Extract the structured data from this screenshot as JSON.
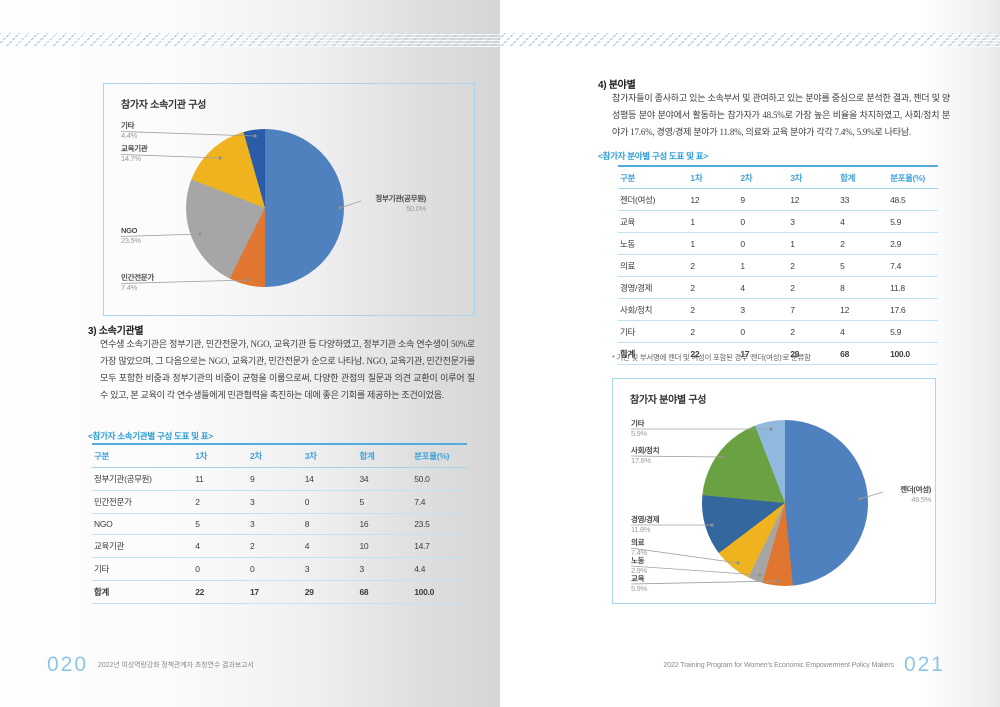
{
  "left_page": {
    "section_heading": "3) 소속기관별",
    "section_body": "연수생 소속기관은 정부기관, 민간전문가, NGO, 교육기관 등 다양하였고, 정부기관 소속 연수생이 50%로 가장 많았으며, 그 다음으로는 NGO, 교육기관, 민간전문가 순으로 나타남. NGO, 교육기관, 민간전문가를 모두 포함한 비중과 정부기관의 비중이 균형을 이룸으로써, 다양한 관점의 질문과 의견 교환이 이루어 질 수 있고, 본 교육이 각 연수생들에게 민관협력을 촉진하는 데에 좋은 기회를 제공하는 조건이었음.",
    "table_caption": "<참가자 소속기관별 구성 도표 및 표>",
    "table": {
      "headers": [
        "구분",
        "1차",
        "2차",
        "3차",
        "합계",
        "분포율(%)"
      ],
      "rows": [
        [
          "정부기관(공무원)",
          "11",
          "9",
          "14",
          "34",
          "50.0"
        ],
        [
          "민간전문가",
          "2",
          "3",
          "0",
          "5",
          "7.4"
        ],
        [
          "NGO",
          "5",
          "3",
          "8",
          "16",
          "23.5"
        ],
        [
          "교육기관",
          "4",
          "2",
          "4",
          "10",
          "14.7"
        ],
        [
          "기타",
          "0",
          "0",
          "3",
          "3",
          "4.4"
        ]
      ],
      "total": [
        "합계",
        "22",
        "17",
        "29",
        "68",
        "100.0"
      ]
    },
    "footer_page": "020",
    "footer_text": "2022년 여성역량강화 정책관계자 초청연수 결과보고서"
  },
  "right_page": {
    "section_heading": "4) 분야별",
    "section_body": "참가자들이 종사하고 있는 소속부서 및 관여하고 있는 분야를 중심으로 분석한 결과, 젠더 및 양성평등 분야 분야에서 활동하는 참가자가 48.5%로 가장 높은 비율을 차지하였고, 사회/정치 분야가 17.6%, 경영/경제 분야가 11.8%, 의료와 교육 분야가 각각 7.4%, 5.9%로 나타남.",
    "table_caption": "<참가자 분야별 구성 도표 및 표>",
    "table": {
      "headers": [
        "구분",
        "1차",
        "2차",
        "3차",
        "합계",
        "분포율(%)"
      ],
      "rows": [
        [
          "젠더(여성)",
          "12",
          "9",
          "12",
          "33",
          "48.5"
        ],
        [
          "교육",
          "1",
          "0",
          "3",
          "4",
          "5.9"
        ],
        [
          "노동",
          "1",
          "0",
          "1",
          "2",
          "2.9"
        ],
        [
          "의료",
          "2",
          "1",
          "2",
          "5",
          "7.4"
        ],
        [
          "경영/경제",
          "2",
          "4",
          "2",
          "8",
          "11.8"
        ],
        [
          "사회/정치",
          "2",
          "3",
          "7",
          "12",
          "17.6"
        ],
        [
          "기타",
          "2",
          "0",
          "2",
          "4",
          "5.9"
        ]
      ],
      "total": [
        "합계",
        "22",
        "17",
        "29",
        "68",
        "100.0"
      ]
    },
    "table_footnote": "* 기관 및 부서명에 젠더 및 여성이 포함된 경우 '젠더(여성)'로 분류함",
    "footer_text": "2022 Training Program for Women's Economic Empowerment Policy Makers",
    "footer_page": "021"
  },
  "chart_data": [
    {
      "type": "pie",
      "title": "참가자 소속기관 구성",
      "unit": "%",
      "legend_position": "callout-labels",
      "slices": [
        {
          "label": "정부기관(공무원)",
          "value": 50.0,
          "color": "#4e81bd"
        },
        {
          "label": "민간전문가",
          "value": 7.4,
          "color": "#e0762f"
        },
        {
          "label": "NGO",
          "value": 23.5,
          "color": "#a6a6a6"
        },
        {
          "label": "교육기관",
          "value": 14.7,
          "color": "#efb320"
        },
        {
          "label": "기타",
          "value": 4.4,
          "color": "#2b5ca9"
        }
      ]
    },
    {
      "type": "pie",
      "title": "참가자 분야별 구성",
      "unit": "%",
      "legend_position": "callout-labels",
      "slices": [
        {
          "label": "젠더(여성)",
          "value": 48.5,
          "color": "#4e81bd"
        },
        {
          "label": "교육",
          "value": 5.9,
          "color": "#e0762f"
        },
        {
          "label": "노동",
          "value": 2.9,
          "color": "#a6a6a6"
        },
        {
          "label": "의료",
          "value": 7.4,
          "color": "#efb320"
        },
        {
          "label": "경영/경제",
          "value": 11.8,
          "color": "#35679f"
        },
        {
          "label": "사회/정치",
          "value": 17.6,
          "color": "#6aa243"
        },
        {
          "label": "기타",
          "value": 5.9,
          "color": "#91b9df"
        }
      ]
    }
  ],
  "colors": {
    "accent_blue": "#41a3da",
    "caption_blue": "#2b9cd8",
    "hatch_blue": "#b6cfe7",
    "page_number_blue": "#90c5ea"
  }
}
